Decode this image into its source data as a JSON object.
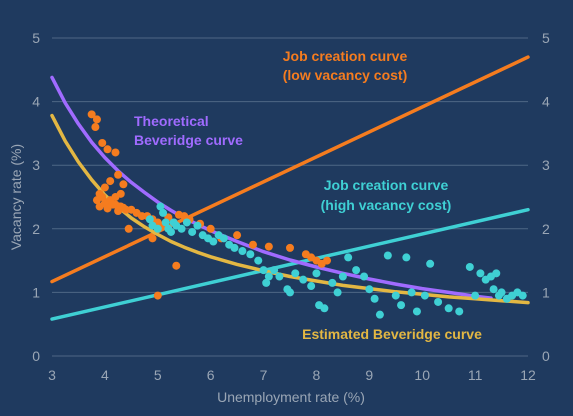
{
  "colors": {
    "background": "#1f3a5f",
    "grid": "#4f6785",
    "axis_text": "#9aa6b5",
    "job_low": "#f57c1f",
    "job_high": "#3fd0d4",
    "theoretical": "#a06bff",
    "estimated": "#e3b743",
    "scatter_orange": "#f57c1f",
    "scatter_teal": "#3fd0d4"
  },
  "chart_data": {
    "type": "scatter",
    "xlabel": "Unemployment rate (%)",
    "ylabel": "Vacancy rate (%)",
    "xlim": [
      3,
      12
    ],
    "ylim": [
      0,
      5
    ],
    "x_ticks": [
      "3",
      "4",
      "5",
      "6",
      "7",
      "8",
      "9",
      "10",
      "11",
      "12"
    ],
    "y_ticks": [
      "0",
      "1",
      "2",
      "3",
      "4",
      "5"
    ],
    "grid": true,
    "annotations": {
      "job_low_line1": "Job creation curve",
      "job_low_line2": "(low vacancy cost)",
      "job_high_line1": "Job creation curve",
      "job_high_line2": "(high vacancy cost)",
      "theoretical_line1": "Theoretical",
      "theoretical_line2": "Beveridge curve",
      "estimated": "Estimated Beveridge curve"
    },
    "series": [
      {
        "key": "job_low",
        "kind": "line",
        "color": "#f57c1f",
        "x": [
          3,
          12
        ],
        "y": [
          1.17,
          4.7
        ]
      },
      {
        "key": "job_high",
        "kind": "line",
        "color": "#3fd0d4",
        "x": [
          3,
          12
        ],
        "y": [
          0.58,
          2.3
        ]
      },
      {
        "key": "theoretical",
        "kind": "line",
        "color": "#a06bff",
        "x": [
          3.0,
          3.25,
          3.5,
          3.75,
          4.0,
          4.25,
          4.5,
          4.75,
          5.0,
          5.25,
          5.5,
          5.75,
          6.0,
          6.5,
          7.0,
          7.5,
          8.0,
          8.5,
          9.0,
          9.5,
          10.0,
          10.5,
          11.0,
          11.3
        ],
        "y": [
          4.38,
          3.98,
          3.65,
          3.36,
          3.12,
          2.91,
          2.73,
          2.57,
          2.42,
          2.29,
          2.17,
          2.07,
          1.97,
          1.8,
          1.64,
          1.51,
          1.4,
          1.3,
          1.21,
          1.13,
          1.06,
          1.0,
          0.94,
          0.91
        ]
      },
      {
        "key": "estimated",
        "kind": "line",
        "color": "#e3b743",
        "x": [
          3.0,
          3.25,
          3.5,
          3.75,
          4.0,
          4.25,
          4.5,
          4.75,
          5.0,
          5.25,
          5.5,
          5.75,
          6.0,
          6.5,
          7.0,
          7.5,
          8.0,
          8.5,
          9.0,
          9.5,
          10.0,
          10.5,
          11.0,
          11.5,
          12.0
        ],
        "y": [
          3.78,
          3.38,
          3.05,
          2.77,
          2.53,
          2.34,
          2.17,
          2.03,
          1.91,
          1.8,
          1.71,
          1.63,
          1.56,
          1.44,
          1.34,
          1.25,
          1.18,
          1.11,
          1.06,
          1.01,
          0.97,
          0.93,
          0.9,
          0.87,
          0.84
        ]
      },
      {
        "key": "scatter_orange",
        "kind": "scatter",
        "color": "#f57c1f",
        "x": [
          3.75,
          3.85,
          3.82,
          3.95,
          4.05,
          4.2,
          4.25,
          4.1,
          4.0,
          3.9,
          3.85,
          3.95,
          4.05,
          4.12,
          4.2,
          4.28,
          4.35,
          4.4,
          3.9,
          4.0,
          4.1,
          4.2,
          4.3,
          4.35,
          4.15,
          4.05,
          4.25,
          4.3,
          4.5,
          4.6,
          4.7,
          4.8,
          4.9,
          5.0,
          5.1,
          5.2,
          5.3,
          5.4,
          5.5,
          5.6,
          5.8,
          6.0,
          6.2,
          6.5,
          6.8,
          7.1,
          7.5,
          7.8,
          8.0,
          8.2,
          8.1,
          7.9,
          4.9,
          5.35,
          5.0,
          4.45
        ],
        "y": [
          3.8,
          3.72,
          3.6,
          3.35,
          3.25,
          3.2,
          2.85,
          2.75,
          2.65,
          2.55,
          2.45,
          2.5,
          2.42,
          2.4,
          2.38,
          2.35,
          2.33,
          2.3,
          2.35,
          2.4,
          2.45,
          2.5,
          2.55,
          2.7,
          2.38,
          2.32,
          2.28,
          2.35,
          2.3,
          2.25,
          2.2,
          2.2,
          2.15,
          2.1,
          2.05,
          2.18,
          2.1,
          2.22,
          2.2,
          2.15,
          2.08,
          2.0,
          1.85,
          1.9,
          1.75,
          1.72,
          1.7,
          1.6,
          1.5,
          1.5,
          1.45,
          1.55,
          1.85,
          1.42,
          0.95,
          2.0
        ]
      },
      {
        "key": "scatter_teal",
        "kind": "scatter",
        "color": "#3fd0d4",
        "x": [
          4.85,
          4.9,
          5.0,
          5.05,
          5.1,
          5.15,
          5.2,
          5.25,
          5.3,
          5.35,
          5.45,
          5.55,
          5.65,
          5.75,
          5.85,
          5.95,
          6.05,
          6.15,
          6.25,
          6.35,
          6.45,
          6.6,
          6.75,
          6.9,
          7.0,
          7.05,
          7.1,
          7.2,
          7.3,
          7.5,
          7.6,
          7.75,
          7.9,
          8.0,
          8.15,
          8.3,
          8.4,
          8.5,
          8.6,
          8.75,
          8.9,
          9.0,
          9.1,
          9.2,
          9.35,
          9.5,
          9.7,
          9.8,
          9.9,
          10.05,
          10.15,
          10.3,
          10.5,
          10.7,
          10.9,
          11.0,
          11.1,
          11.2,
          11.3,
          11.35,
          11.4,
          11.45,
          11.5,
          11.6,
          11.7,
          11.8,
          11.9,
          8.05,
          7.45,
          9.6
        ],
        "y": [
          2.15,
          2.05,
          2.0,
          2.35,
          2.25,
          2.1,
          2.0,
          1.95,
          2.1,
          2.05,
          2.0,
          2.1,
          1.95,
          2.05,
          1.9,
          1.85,
          1.8,
          1.9,
          1.85,
          1.75,
          1.7,
          1.65,
          1.6,
          1.5,
          1.35,
          1.15,
          1.25,
          1.35,
          1.25,
          1.0,
          1.3,
          1.2,
          1.1,
          1.3,
          0.75,
          1.15,
          1.0,
          1.25,
          1.55,
          1.35,
          1.25,
          1.05,
          0.9,
          0.65,
          1.58,
          0.95,
          1.55,
          1.0,
          0.7,
          0.95,
          1.45,
          0.85,
          0.75,
          0.7,
          1.4,
          0.95,
          1.3,
          1.2,
          1.25,
          1.05,
          1.3,
          0.95,
          1.0,
          0.9,
          0.95,
          1.0,
          0.95,
          0.8,
          1.05,
          0.8
        ]
      }
    ]
  }
}
